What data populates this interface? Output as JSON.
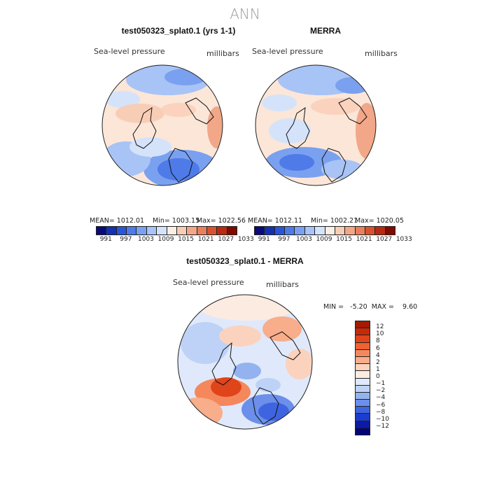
{
  "figure": {
    "title": "ANN"
  },
  "panels": [
    {
      "title": "test050323_splat0.1 (yrs 1-1)",
      "variable": "Sea-level pressure",
      "units": "millibars",
      "mean": "MEAN= 1012.01",
      "min": "Min= 1003.15",
      "max": "Max= 1022.56"
    },
    {
      "title": "MERRA",
      "variable": "Sea-level pressure",
      "units": "millibars",
      "mean": "MEAN= 1012.11",
      "min": "Min= 1002.21",
      "max": "Max= 1020.05"
    },
    {
      "title": "test050323_splat0.1 - MERRA",
      "variable": "Sea-level pressure",
      "units": "millibars",
      "minmax": "MIN =   -5.20  MAX =    9.60"
    }
  ],
  "colorbar_abs": {
    "ticks": [
      "991",
      "997",
      "1003",
      "1009",
      "1015",
      "1021",
      "1027",
      "1033"
    ],
    "colors": [
      "#0a0a7a",
      "#1530b0",
      "#2a55d6",
      "#4f7be8",
      "#7aa0f0",
      "#a8c3f5",
      "#d4e3fa",
      "#fbeee4",
      "#f8cdb6",
      "#f2a788",
      "#ea7f5d",
      "#d9522f",
      "#b92a12",
      "#7f0a00"
    ]
  },
  "colorbar_diff": {
    "labels": [
      "12",
      "10",
      "8",
      "6",
      "4",
      "2",
      "1",
      "0",
      "−1",
      "−2",
      "−4",
      "−6",
      "−8",
      "−10",
      "−12"
    ],
    "colors": [
      "#a51a00",
      "#c82a08",
      "#e0441a",
      "#ef6233",
      "#f5875c",
      "#f8ad8b",
      "#fbd2bd",
      "#fcebe1",
      "#dfe9fb",
      "#bdd2f6",
      "#93b2ef",
      "#6b8fea",
      "#3f64e0",
      "#1c3ccd",
      "#0c1aa4",
      "#04047a"
    ]
  }
}
